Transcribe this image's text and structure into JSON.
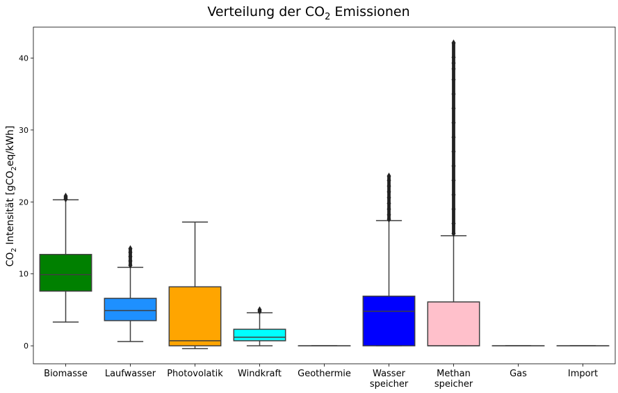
{
  "chart_data": {
    "type": "box",
    "title_main": "Verteilung der CO",
    "title_sub": "2",
    "title_rest": " Emissionen",
    "ylabel_main": "CO",
    "ylabel_sub1": "2",
    "ylabel_mid": " Intensität [gCO",
    "ylabel_sub2": "2",
    "ylabel_rest": "eq/kWh]",
    "ylim": [
      -2.5,
      44.3
    ],
    "yticks": [
      0,
      10,
      20,
      30,
      40
    ],
    "grid": false,
    "categories": [
      {
        "lines": [
          "Biomasse"
        ],
        "color": "#008000",
        "whisker_low": 3.3,
        "q1": 7.6,
        "median": 9.9,
        "q3": 12.7,
        "whisker_high": 20.3,
        "outliers": [
          20.4,
          20.6,
          20.8
        ]
      },
      {
        "lines": [
          "Laufwasser"
        ],
        "color": "#1e90ff",
        "whisker_low": 0.6,
        "q1": 3.5,
        "median": 4.9,
        "q3": 6.6,
        "whisker_high": 10.9,
        "outliers": [
          11.2,
          11.8,
          12.4,
          13.0,
          13.5
        ]
      },
      {
        "lines": [
          "Photovolatik"
        ],
        "color": "#ffa500",
        "whisker_low": -0.4,
        "q1": 0.0,
        "median": 0.7,
        "q3": 8.2,
        "whisker_high": 17.2,
        "outliers": []
      },
      {
        "lines": [
          "Windkraft"
        ],
        "color": "#00ffff",
        "whisker_low": 0.0,
        "q1": 0.7,
        "median": 1.2,
        "q3": 2.3,
        "whisker_high": 4.6,
        "outliers": [
          4.8,
          5.0
        ]
      },
      {
        "lines": [
          "Geothermie"
        ],
        "color": "#ffffff",
        "whisker_low": 0.0,
        "q1": 0.0,
        "median": 0.0,
        "q3": 0.0,
        "whisker_high": 0.0,
        "outliers": []
      },
      {
        "lines": [
          "Wasser",
          "speicher"
        ],
        "color": "#0000ff",
        "whisker_low": 0.0,
        "q1": 0.0,
        "median": 4.8,
        "q3": 6.9,
        "whisker_high": 17.4,
        "outliers": [
          17.6,
          18.2,
          19.0,
          19.8,
          20.6,
          21.4,
          22.2,
          23.0,
          23.6
        ]
      },
      {
        "lines": [
          "Methan",
          "speicher"
        ],
        "color": "#ffc0cb",
        "whisker_low": 0.0,
        "q1": 0.0,
        "median": 0.0,
        "q3": 6.1,
        "whisker_high": 15.3,
        "outliers": [
          15.6,
          17,
          19,
          21,
          23,
          25,
          27,
          29,
          31,
          33,
          35,
          37,
          38.5,
          39.3,
          40.1,
          42.1
        ]
      },
      {
        "lines": [
          "Gas"
        ],
        "color": "#ffffff",
        "whisker_low": 0.0,
        "q1": 0.0,
        "median": 0.0,
        "q3": 0.0,
        "whisker_high": 0.0,
        "outliers": []
      },
      {
        "lines": [
          "Import"
        ],
        "color": "#ffffff",
        "whisker_low": 0.0,
        "q1": 0.0,
        "median": 0.0,
        "q3": 0.0,
        "whisker_high": 0.0,
        "outliers": []
      }
    ]
  }
}
